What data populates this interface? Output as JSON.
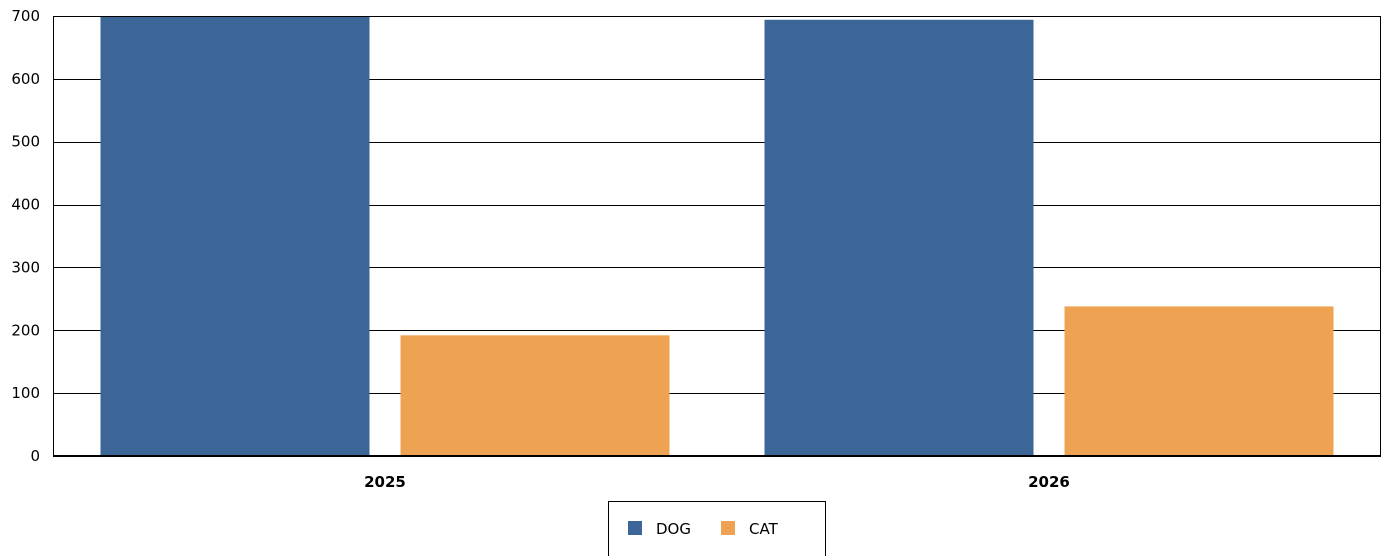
{
  "chart_data": {
    "type": "bar",
    "categories": [
      "2025",
      "2026"
    ],
    "series": [
      {
        "name": "DOG",
        "values": [
          700,
          694
        ],
        "color": "#3b6697"
      },
      {
        "name": "CAT",
        "values": [
          192,
          238
        ],
        "color": "#eea353"
      }
    ],
    "ylim": [
      0,
      700
    ],
    "yticks": [
      0,
      100,
      200,
      300,
      400,
      500,
      600,
      700
    ],
    "grid": true,
    "legend": "bottom-center",
    "title": "",
    "xlabel": "",
    "ylabel": ""
  }
}
